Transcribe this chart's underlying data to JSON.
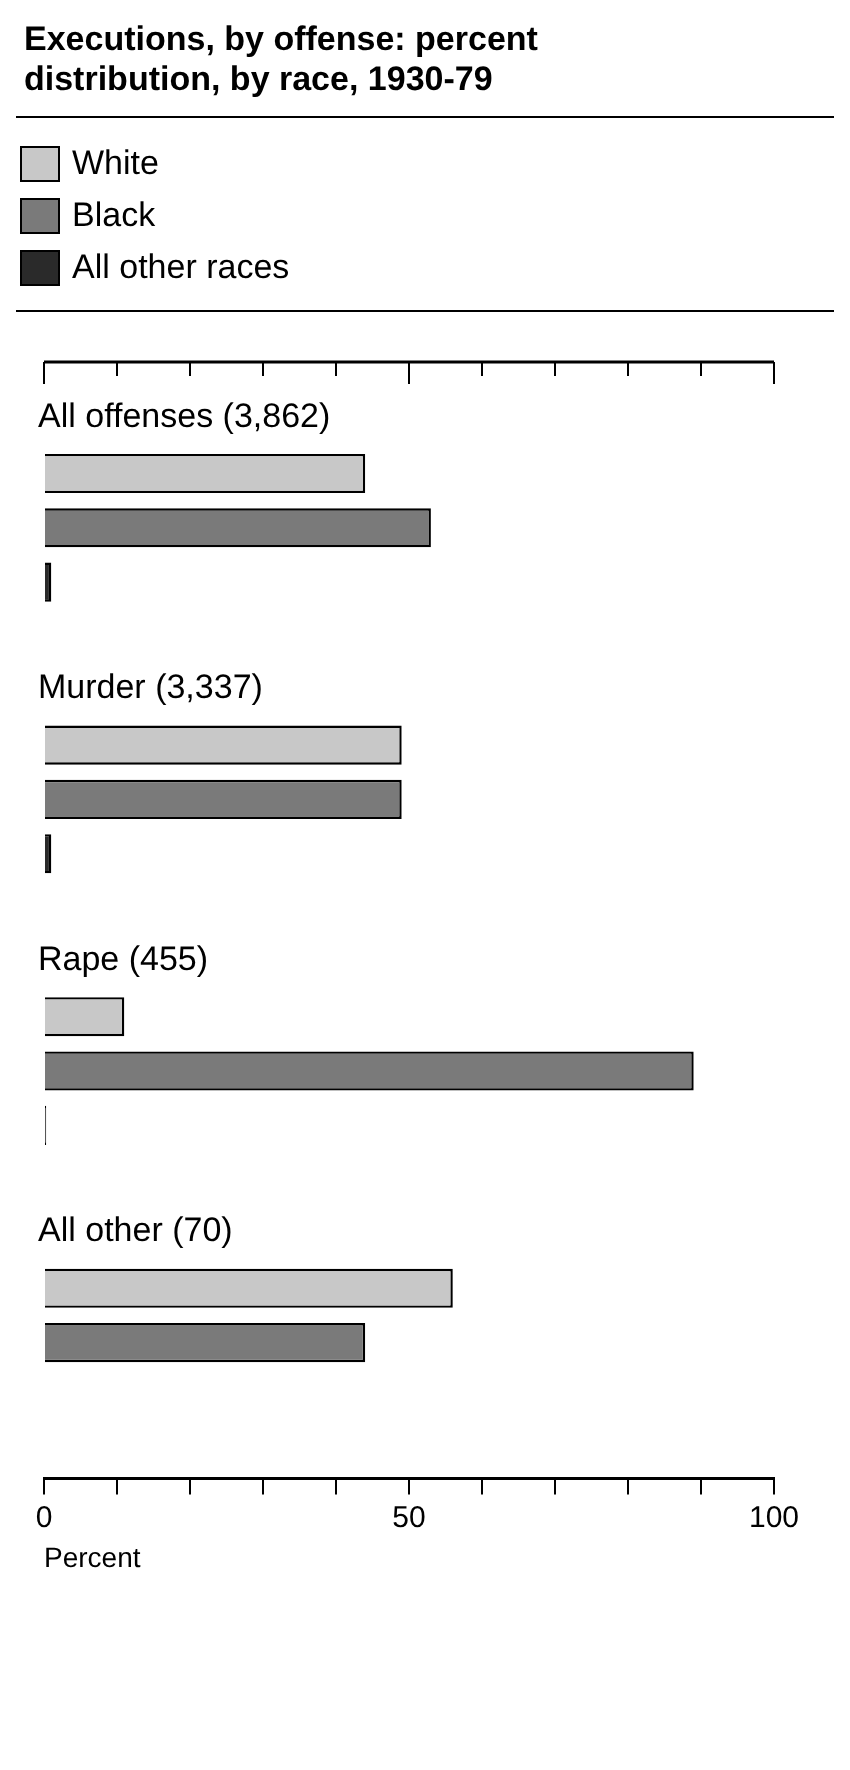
{
  "chart_data": {
    "type": "bar",
    "orientation": "horizontal",
    "title": "Executions, by offense: percent distribution, by race, 1930-79",
    "xlabel": "Percent",
    "categories": [
      "All offenses (3,862)",
      "Murder (3,337)",
      "Rape (455)",
      "All other (70)"
    ],
    "series": [
      {
        "name": "White",
        "color": "#c8c8c8",
        "values": [
          44,
          49,
          11,
          56
        ]
      },
      {
        "name": "Black",
        "color": "#7a7a7a",
        "values": [
          53,
          49,
          89,
          44
        ]
      },
      {
        "name": "All other races",
        "color": "#2a2a2a",
        "values": [
          1,
          1,
          0.3,
          null
        ]
      }
    ],
    "xlim": [
      0,
      100
    ],
    "xticks": [
      0,
      {
        "value": 10,
        "label": null
      },
      {
        "value": 20,
        "label": null
      },
      {
        "value": 30,
        "label": null
      },
      {
        "value": 40,
        "label": null
      },
      50,
      {
        "value": 60,
        "label": null
      },
      {
        "value": 70,
        "label": null
      },
      {
        "value": 80,
        "label": null
      },
      {
        "value": 90,
        "label": null
      },
      100
    ],
    "grid": false,
    "legend": "top left"
  }
}
